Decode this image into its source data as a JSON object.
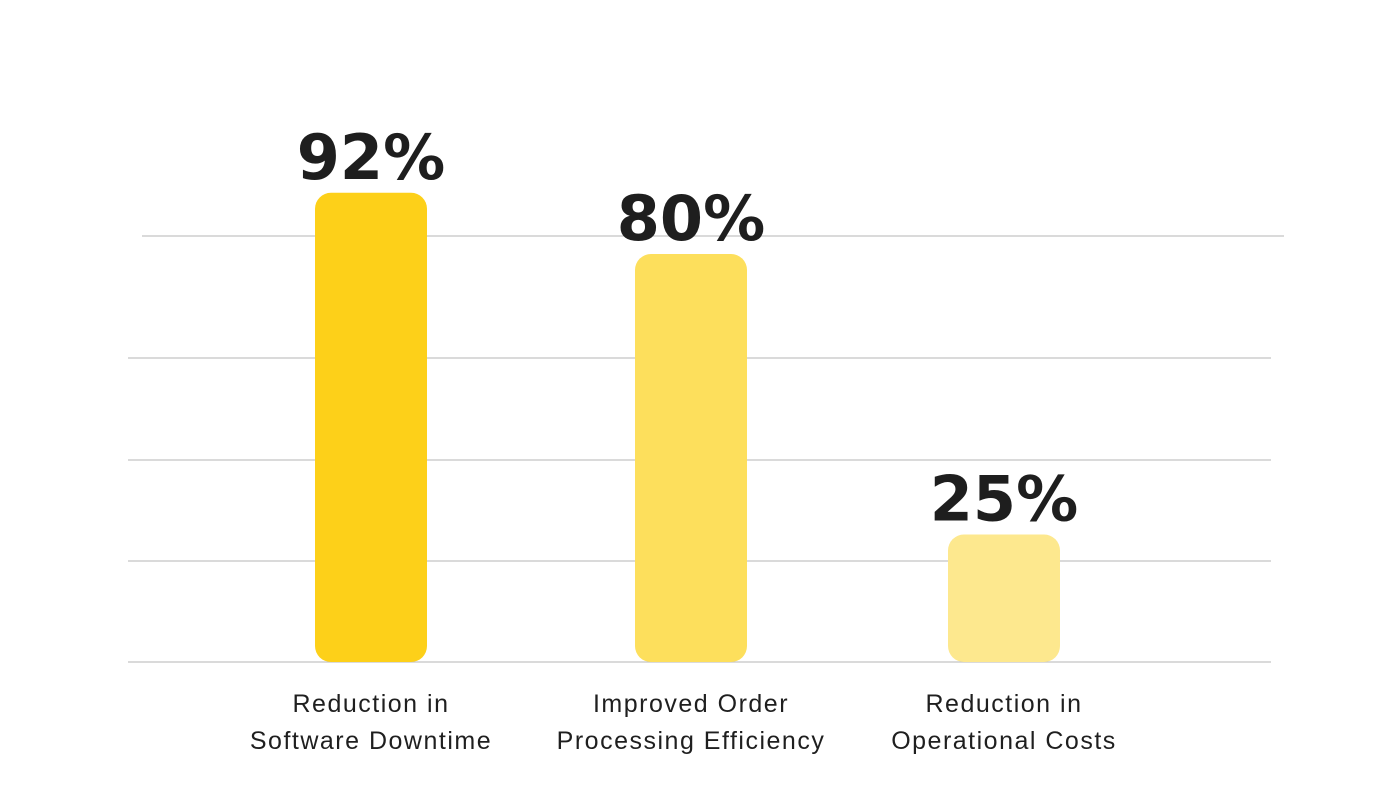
{
  "chart_data": {
    "type": "bar",
    "categories": [
      "Reduction in Software Downtime",
      "Improved Order Processing Efficiency",
      "Reduction in Operational Costs"
    ],
    "category_lines": [
      [
        "Reduction in",
        "Software Downtime"
      ],
      [
        "Improved Order",
        "Processing Efficiency"
      ],
      [
        "Reduction in",
        "Operational Costs"
      ]
    ],
    "values": [
      92,
      80,
      25
    ],
    "value_labels": [
      "92%",
      "80%",
      "25%"
    ],
    "bar_colors": [
      "#FDD019",
      "#FDDF5C",
      "#FDE88E"
    ],
    "label_color": "#1E1E1E",
    "grid": true,
    "legend": "none"
  }
}
